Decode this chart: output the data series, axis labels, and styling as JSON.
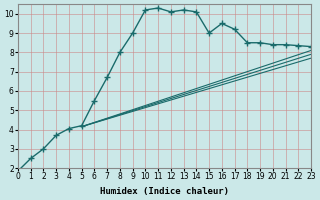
{
  "title": "",
  "xlabel": "Humidex (Indice chaleur)",
  "ylabel": "",
  "bg_color": "#cbe8e8",
  "line_color": "#1a6b6b",
  "xlim": [
    0,
    23
  ],
  "ylim": [
    2,
    10.5
  ],
  "xticks": [
    0,
    1,
    2,
    3,
    4,
    5,
    6,
    7,
    8,
    9,
    10,
    11,
    12,
    13,
    14,
    15,
    16,
    17,
    18,
    19,
    20,
    21,
    22,
    23
  ],
  "yticks": [
    2,
    3,
    4,
    5,
    6,
    7,
    8,
    9,
    10
  ],
  "lines": [
    {
      "x": [
        0,
        1,
        2,
        3,
        4,
        5,
        6,
        7,
        8,
        9,
        10,
        11,
        12,
        13,
        14,
        15,
        16,
        17,
        18,
        19,
        20,
        21,
        22,
        23
      ],
      "y": [
        1.85,
        2.5,
        3.0,
        3.7,
        4.05,
        4.2,
        5.5,
        6.7,
        8.0,
        9.0,
        10.2,
        10.3,
        10.1,
        10.2,
        10.1,
        9.0,
        9.5,
        9.2,
        8.5,
        8.5,
        8.4,
        8.4,
        8.35,
        8.3
      ],
      "marker": true
    },
    {
      "x": [
        5,
        23
      ],
      "y": [
        4.15,
        8.1
      ],
      "marker": false
    },
    {
      "x": [
        5,
        23
      ],
      "y": [
        4.15,
        7.9
      ],
      "marker": false
    },
    {
      "x": [
        5,
        23
      ],
      "y": [
        4.15,
        7.7
      ],
      "marker": false
    }
  ]
}
